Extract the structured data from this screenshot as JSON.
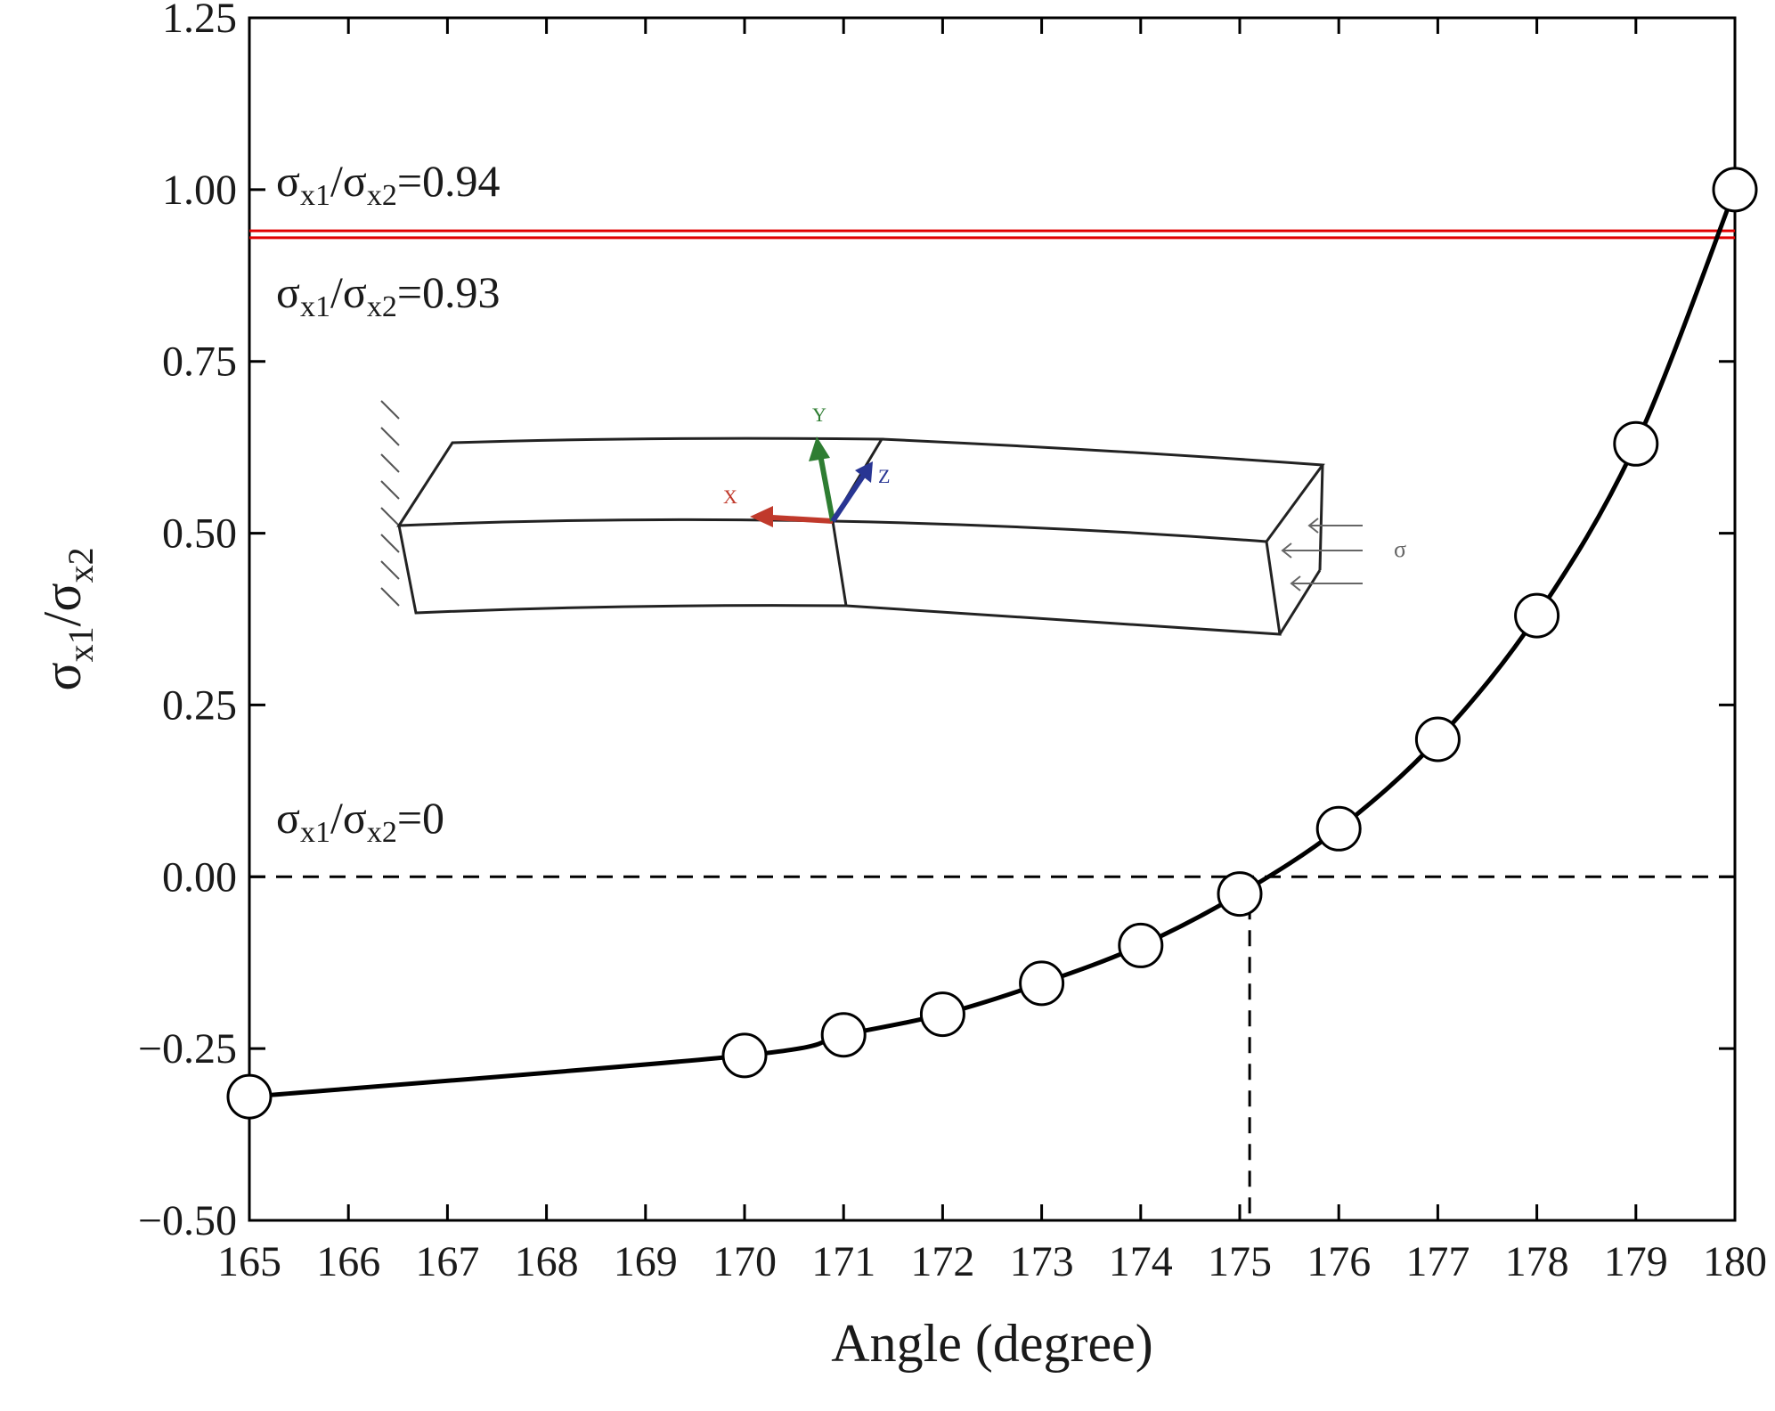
{
  "chart_data": {
    "type": "line",
    "xlabel": "Angle (degree)",
    "ylabel": {
      "base1": "σ",
      "sub1": "x1",
      "slash": "/",
      "base2": "σ",
      "sub2": "x2"
    },
    "xlim": [
      165,
      180
    ],
    "ylim": [
      -0.5,
      1.25
    ],
    "x_ticks": [
      "165",
      "166",
      "167",
      "168",
      "169",
      "170",
      "171",
      "172",
      "173",
      "174",
      "175",
      "176",
      "177",
      "178",
      "179",
      "180"
    ],
    "y_ticks": [
      "1.25",
      "1.00",
      "0.75",
      "0.50",
      "0.25",
      "0.00",
      "−0.25",
      "−0.50"
    ],
    "series": [
      {
        "x": [
          165,
          170,
          171,
          172,
          173,
          174,
          175,
          176,
          177,
          178,
          179,
          180
        ],
        "y": [
          -0.32,
          -0.26,
          -0.23,
          -0.2,
          -0.155,
          -0.1,
          -0.025,
          0.07,
          0.2,
          0.38,
          0.63,
          1.0
        ],
        "color": "#000000",
        "marker": "open-circle"
      }
    ],
    "reference_lines": [
      {
        "y": 0.94,
        "color": "#e00000",
        "style": "solid"
      },
      {
        "y": 0.93,
        "color": "#e00000",
        "style": "solid"
      },
      {
        "y": 0.0,
        "color": "#000000",
        "style": "dashed"
      }
    ],
    "vertical_reference": {
      "x": 175.1,
      "from_y": -0.5,
      "to_y": 0.0,
      "style": "dashed"
    },
    "annotations": [
      {
        "base1": "σ",
        "sub1": "x1",
        "slash": "/",
        "base2": "σ",
        "sub2": "x2",
        "suffix": "=0.94"
      },
      {
        "base1": "σ",
        "sub1": "x1",
        "slash": "/",
        "base2": "σ",
        "sub2": "x2",
        "suffix": "=0.93"
      },
      {
        "base1": "σ",
        "sub1": "x1",
        "slash": "/",
        "base2": "σ",
        "sub2": "x2",
        "suffix": "=0"
      }
    ],
    "grid": false
  },
  "inset": {
    "axis_y": "Y",
    "axis_z": "Z",
    "axis_x": "X",
    "load": "σ",
    "colors": {
      "x": "#c0392b",
      "y": "#2e7d32",
      "z": "#283593"
    }
  }
}
